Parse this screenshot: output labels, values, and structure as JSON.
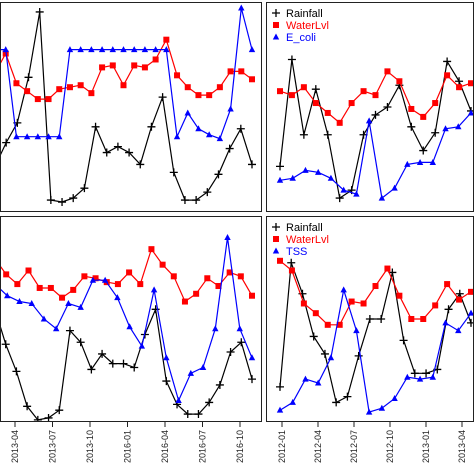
{
  "chart_data": [
    {
      "type": "line",
      "panel": "top-left",
      "title": "",
      "xlabel": "",
      "ylabel": "",
      "legend": [],
      "series": [
        {
          "color": "#000000",
          "marker": "plus",
          "values": [
            0.8,
            0.68,
            0.58,
            0.35,
            0.02,
            0.97,
            0.98,
            0.96,
            0.91,
            0.6,
            0.73,
            0.7,
            0.73,
            0.79,
            0.6,
            0.45,
            0.83,
            0.97,
            0.97,
            0.93,
            0.84,
            0.71,
            0.61,
            0.79
          ]
        },
        {
          "color": "#ff0000",
          "marker": "square",
          "values": [
            0.33,
            0.23,
            0.38,
            0.42,
            0.46,
            0.46,
            0.41,
            0.4,
            0.39,
            0.43,
            0.3,
            0.29,
            0.39,
            0.29,
            0.3,
            0.26,
            0.16,
            0.34,
            0.4,
            0.44,
            0.44,
            0.4,
            0.32,
            0.32,
            0.36
          ]
        },
        {
          "color": "#0000ff",
          "marker": "triangle",
          "values": [
            0.21,
            0.21,
            0.65,
            0.65,
            0.65,
            0.65,
            0.65,
            0.21,
            0.21,
            0.21,
            0.21,
            0.21,
            0.21,
            0.21,
            0.21,
            0.21,
            0.21,
            0.65,
            0.53,
            0.61,
            0.64,
            0.66,
            0.51,
            0.0,
            0.21
          ]
        }
      ]
    },
    {
      "type": "line",
      "panel": "top-right",
      "title": "",
      "xlabel": "",
      "ylabel": "",
      "legend": [
        "Rainfall",
        "WaterLvl",
        "E_coli"
      ],
      "series": [
        {
          "name": "Rainfall",
          "color": "#000000",
          "marker": "plus",
          "values": [
            0.8,
            0.26,
            0.64,
            0.41,
            0.64,
            0.96,
            0.92,
            0.64,
            0.54,
            0.5,
            0.39,
            0.6,
            0.72,
            0.63,
            0.27,
            0.37,
            0.52
          ]
        },
        {
          "name": "WaterLvl",
          "color": "#ff0000",
          "marker": "square",
          "values": [
            0.42,
            0.44,
            0.4,
            0.48,
            0.53,
            0.58,
            0.48,
            0.42,
            0.44,
            0.32,
            0.37,
            0.51,
            0.55,
            0.48,
            0.34,
            0.4,
            0.38
          ]
        },
        {
          "name": "E_coli",
          "color": "#0000ff",
          "marker": "triangle",
          "values": [
            0.87,
            0.86,
            0.82,
            0.83,
            0.86,
            0.92,
            0.94,
            0.57,
            0.96,
            0.91,
            0.79,
            0.78,
            0.78,
            0.61,
            0.6,
            0.53
          ]
        }
      ]
    },
    {
      "type": "line",
      "panel": "bottom-left",
      "title": "",
      "xlabel": "",
      "ylabel": "",
      "legend": [],
      "series": [
        {
          "color": "#000000",
          "marker": "plus",
          "values": [
            0.45,
            0.63,
            0.77,
            0.95,
            1.02,
            1.01,
            0.97,
            0.56,
            0.62,
            0.76,
            0.68,
            0.73,
            0.73,
            0.75,
            0.58,
            0.45,
            0.82,
            0.94,
            0.99,
            0.99,
            0.93,
            0.84,
            0.67,
            0.62,
            0.81
          ]
        },
        {
          "color": "#ff0000",
          "marker": "square",
          "values": [
            0.19,
            0.27,
            0.32,
            0.25,
            0.34,
            0.34,
            0.39,
            0.35,
            0.28,
            0.29,
            0.31,
            0.32,
            0.26,
            0.32,
            0.14,
            0.22,
            0.28,
            0.41,
            0.37,
            0.29,
            0.33,
            0.26,
            0.28,
            0.38
          ]
        },
        {
          "color": "#0000ff",
          "marker": "triangle",
          "values": [
            0.32,
            0.38,
            0.41,
            0.42,
            0.5,
            0.55,
            0.42,
            0.44,
            0.3,
            0.3,
            0.39,
            0.54,
            0.64,
            0.35,
            0.7,
            0.92,
            0.78,
            0.75,
            0.55,
            0.08,
            0.55,
            0.7
          ]
        }
      ]
    },
    {
      "type": "line",
      "panel": "bottom-right",
      "title": "",
      "xlabel": "",
      "ylabel": "",
      "legend": [
        "Rainfall",
        "WaterLvl",
        "TSS"
      ],
      "series": [
        {
          "name": "Rainfall",
          "color": "#000000",
          "marker": "plus",
          "values": [
            0.85,
            0.21,
            0.37,
            0.59,
            0.68,
            0.93,
            0.9,
            0.69,
            0.5,
            0.5,
            0.26,
            0.61,
            0.78,
            0.78,
            0.76,
            0.45,
            0.37,
            0.52
          ]
        },
        {
          "name": "WaterLvl",
          "color": "#ff0000",
          "marker": "square",
          "values": [
            0.2,
            0.25,
            0.42,
            0.47,
            0.53,
            0.53,
            0.41,
            0.42,
            0.33,
            0.24,
            0.38,
            0.5,
            0.5,
            0.43,
            0.32,
            0.4,
            0.36
          ]
        },
        {
          "name": "TSS",
          "color": "#0000ff",
          "marker": "triangle",
          "values": [
            0.97,
            0.93,
            0.81,
            0.83,
            0.7,
            0.35,
            0.56,
            0.98,
            0.96,
            0.91,
            0.8,
            0.81,
            0.8,
            0.52,
            0.56,
            0.47
          ]
        }
      ]
    }
  ],
  "x_axis_left": {
    "ticks": [
      "2013-04",
      "2013-07",
      "2013-10",
      "2016-01",
      "2016-04",
      "2016-07",
      "2016-10"
    ]
  },
  "x_axis_right": {
    "ticks": [
      "2012-01",
      "2012-04",
      "2012-07",
      "2012-10",
      "2013-01",
      "2013-04"
    ]
  }
}
